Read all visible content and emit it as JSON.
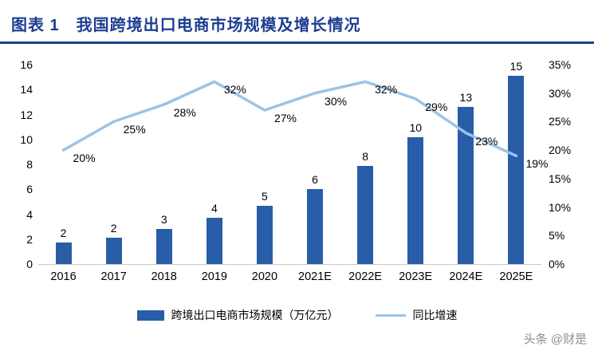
{
  "header": {
    "title": "图表 1　我国跨境出口电商市场规模及增长情况"
  },
  "watermark": {
    "text": "头条 @财是"
  },
  "colors": {
    "title": "#1D3E91",
    "bar": "#2A5DA8",
    "line": "#9DC3E6",
    "axis_text": "#000000",
    "baseline": "#C9C9C9"
  },
  "chart_data": {
    "type": "combo",
    "title": "我国跨境出口电商市场规模及增长情况",
    "categories": [
      "2016",
      "2017",
      "2018",
      "2019",
      "2020",
      "2021E",
      "2022E",
      "2023E",
      "2024E",
      "2025E"
    ],
    "series": [
      {
        "name": "跨境出口电商市场规模（万亿元）",
        "type": "bar",
        "axis": "left",
        "color": "#2A5DA8",
        "values": [
          1.7,
          2.1,
          2.8,
          3.7,
          4.7,
          6.0,
          7.9,
          10.2,
          12.6,
          15.1
        ],
        "labels": [
          "2",
          "2",
          "3",
          "4",
          "5",
          "6",
          "8",
          "10",
          "13",
          "15"
        ]
      },
      {
        "name": "同比增速",
        "type": "line",
        "axis": "right",
        "color": "#9DC3E6",
        "values": [
          20,
          25,
          28,
          32,
          27,
          30,
          32,
          29,
          23,
          19
        ],
        "labels": [
          "20%",
          "25%",
          "28%",
          "32%",
          "27%",
          "30%",
          "32%",
          "29%",
          "23%",
          "19%"
        ]
      }
    ],
    "left_axis": {
      "min": 0,
      "max": 16,
      "ticks": [
        "0",
        "2",
        "4",
        "6",
        "8",
        "10",
        "12",
        "14",
        "16"
      ]
    },
    "right_axis": {
      "min": 0,
      "max": 35,
      "ticks": [
        "0%",
        "5%",
        "10%",
        "15%",
        "20%",
        "25%",
        "30%",
        "35%"
      ]
    },
    "grid": false,
    "legend_position": "bottom"
  }
}
